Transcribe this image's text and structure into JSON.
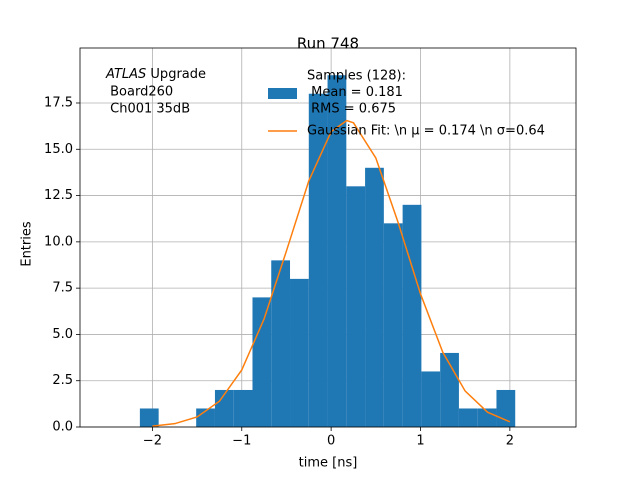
{
  "chart_data": {
    "type": "histogram",
    "title": "Run 748",
    "x_label": "time [ns]",
    "y_label": "Entries",
    "annotation": [
      "ATLAS",
      "Upgrade",
      " Board260",
      " Ch001 35dB"
    ],
    "bins": [
      -2.14,
      -1.93,
      -1.72,
      -1.51,
      -1.3,
      -1.09,
      -0.88,
      -0.67,
      -0.46,
      -0.25,
      -0.04,
      0.17,
      0.38,
      0.59,
      0.8,
      1.01,
      1.22,
      1.43,
      1.64,
      1.85,
      2.06
    ],
    "series": [
      {
        "type": "histogram",
        "name": [
          "Samples (128):",
          " Mean = 0.181",
          " RMS = 0.675"
        ],
        "color": "#1f77b4",
        "values": [
          1,
          0,
          0,
          1,
          2,
          2,
          7,
          9,
          8,
          18,
          19,
          13,
          14,
          11,
          12,
          3,
          4,
          1,
          1,
          2
        ]
      },
      {
        "type": "line",
        "name": "Gaussian Fit: \\n μ = 0.174 \\n σ=0.64",
        "color": "#ff7f0e",
        "x": [
          -2,
          -1.75,
          -1.5,
          -1.25,
          -1,
          -0.75,
          -0.5,
          -0.25,
          0,
          0.174,
          0.25,
          0.5,
          0.75,
          1,
          1.25,
          1.5,
          1.75,
          2
        ],
        "values": [
          0.05,
          0.18,
          0.54,
          1.39,
          3.08,
          5.84,
          9.51,
          13.29,
          15.95,
          16.55,
          16.43,
          14.53,
          11.04,
          7.19,
          4.03,
          1.94,
          0.8,
          0.28
        ]
      }
    ],
    "xlim": [
      -2.81,
      2.74
    ],
    "ylim": [
      0,
      20.47
    ],
    "xticks": [
      {
        "value": -2,
        "label": "−2"
      },
      {
        "value": -1,
        "label": "−1"
      },
      0,
      1,
      2
    ],
    "yticks": [
      {
        "value": 0,
        "label": "0.0"
      },
      2.5,
      {
        "value": 5,
        "label": "5.0"
      },
      7.5,
      {
        "value": 10,
        "label": "10.0"
      },
      12.5,
      {
        "value": 15,
        "label": "15.0"
      },
      17.5
    ],
    "grid": true
  }
}
